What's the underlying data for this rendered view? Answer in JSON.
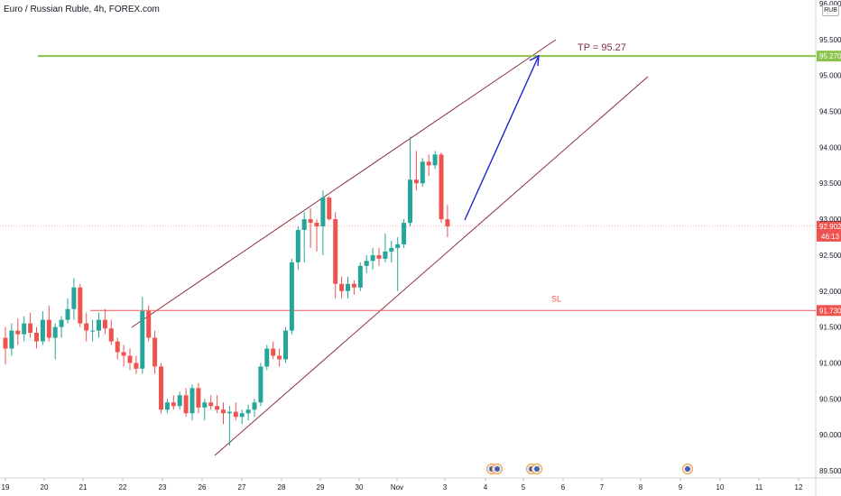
{
  "header": {
    "title": "Euro / Russian Ruble, 4h, FOREX.com",
    "currency": "RUB"
  },
  "colors": {
    "up": "#26a69a",
    "down": "#ef5350",
    "channel": "#8b2c3c",
    "arrow": "#1e22d4",
    "tp_line": "#8bc34a",
    "tp_text": "#7b2c4c",
    "sl": "#ef5350",
    "current": "#ef5350",
    "tp_tag": "#8bc34a",
    "grid": "#e0e3eb",
    "axis_text": "#131722"
  },
  "chart_data": {
    "type": "candlestick",
    "symbol": "EURRUB",
    "interval": "4h",
    "source": "FOREX.com",
    "ylim": [
      89.5,
      96.0
    ],
    "y_ticks": [
      "96.000",
      "95.500",
      "95.000",
      "94.500",
      "94.000",
      "93.500",
      "93.000",
      "92.500",
      "92.000",
      "91.500",
      "91.000",
      "90.500",
      "90.000",
      "89.500"
    ],
    "x_ticks": [
      "19",
      "20",
      "21",
      "22",
      "23",
      "26",
      "27",
      "28",
      "29",
      "30",
      "Nov",
      "3",
      "4",
      "5",
      "6",
      "7",
      "8",
      "9",
      "10",
      "11",
      "12"
    ],
    "candles": [
      {
        "o": 91.35,
        "h": 91.5,
        "l": 90.98,
        "c": 91.2
      },
      {
        "o": 91.2,
        "h": 91.55,
        "l": 91.1,
        "c": 91.45
      },
      {
        "o": 91.45,
        "h": 91.62,
        "l": 91.25,
        "c": 91.4
      },
      {
        "o": 91.4,
        "h": 91.65,
        "l": 91.3,
        "c": 91.55
      },
      {
        "o": 91.55,
        "h": 91.7,
        "l": 91.35,
        "c": 91.42
      },
      {
        "o": 91.42,
        "h": 91.5,
        "l": 91.2,
        "c": 91.3
      },
      {
        "o": 91.3,
        "h": 91.72,
        "l": 91.25,
        "c": 91.6
      },
      {
        "o": 91.6,
        "h": 91.8,
        "l": 91.3,
        "c": 91.35
      },
      {
        "o": 91.35,
        "h": 91.55,
        "l": 91.05,
        "c": 91.5
      },
      {
        "o": 91.5,
        "h": 91.65,
        "l": 91.35,
        "c": 91.6
      },
      {
        "o": 91.6,
        "h": 91.9,
        "l": 91.55,
        "c": 91.75
      },
      {
        "o": 91.75,
        "h": 92.18,
        "l": 91.6,
        "c": 92.05
      },
      {
        "o": 92.05,
        "h": 92.1,
        "l": 91.5,
        "c": 91.55
      },
      {
        "o": 91.55,
        "h": 91.7,
        "l": 91.3,
        "c": 91.45
      },
      {
        "o": 91.45,
        "h": 91.6,
        "l": 91.3,
        "c": 91.45
      },
      {
        "o": 91.45,
        "h": 91.7,
        "l": 91.35,
        "c": 91.6
      },
      {
        "o": 91.6,
        "h": 91.75,
        "l": 91.4,
        "c": 91.48
      },
      {
        "o": 91.48,
        "h": 91.6,
        "l": 91.25,
        "c": 91.3
      },
      {
        "o": 91.3,
        "h": 91.35,
        "l": 91.05,
        "c": 91.15
      },
      {
        "o": 91.15,
        "h": 91.25,
        "l": 90.95,
        "c": 91.1
      },
      {
        "o": 91.1,
        "h": 91.2,
        "l": 90.9,
        "c": 91.0
      },
      {
        "o": 91.0,
        "h": 91.1,
        "l": 90.85,
        "c": 90.92
      },
      {
        "o": 90.92,
        "h": 91.92,
        "l": 90.85,
        "c": 91.72
      },
      {
        "o": 91.72,
        "h": 91.8,
        "l": 91.3,
        "c": 91.35
      },
      {
        "o": 91.35,
        "h": 91.45,
        "l": 90.85,
        "c": 90.95
      },
      {
        "o": 90.95,
        "h": 91.0,
        "l": 90.3,
        "c": 90.35
      },
      {
        "o": 90.35,
        "h": 90.5,
        "l": 90.3,
        "c": 90.45
      },
      {
        "o": 90.45,
        "h": 90.55,
        "l": 90.35,
        "c": 90.4
      },
      {
        "o": 90.4,
        "h": 90.6,
        "l": 90.35,
        "c": 90.55
      },
      {
        "o": 90.55,
        "h": 90.65,
        "l": 90.25,
        "c": 90.3
      },
      {
        "o": 90.3,
        "h": 90.7,
        "l": 90.2,
        "c": 90.65
      },
      {
        "o": 90.65,
        "h": 90.72,
        "l": 90.3,
        "c": 90.38
      },
      {
        "o": 90.38,
        "h": 90.5,
        "l": 90.2,
        "c": 90.45
      },
      {
        "o": 90.45,
        "h": 90.55,
        "l": 90.35,
        "c": 90.4
      },
      {
        "o": 90.4,
        "h": 90.55,
        "l": 90.3,
        "c": 90.35
      },
      {
        "o": 90.35,
        "h": 90.45,
        "l": 90.15,
        "c": 90.3
      },
      {
        "o": 90.3,
        "h": 90.4,
        "l": 89.85,
        "c": 90.32
      },
      {
        "o": 90.32,
        "h": 90.45,
        "l": 90.2,
        "c": 90.25
      },
      {
        "o": 90.25,
        "h": 90.35,
        "l": 90.15,
        "c": 90.3
      },
      {
        "o": 90.3,
        "h": 90.42,
        "l": 90.2,
        "c": 90.35
      },
      {
        "o": 90.35,
        "h": 90.5,
        "l": 90.25,
        "c": 90.45
      },
      {
        "o": 90.45,
        "h": 91.0,
        "l": 90.4,
        "c": 90.95
      },
      {
        "o": 90.95,
        "h": 91.25,
        "l": 90.9,
        "c": 91.2
      },
      {
        "o": 91.2,
        "h": 91.3,
        "l": 91.05,
        "c": 91.1
      },
      {
        "o": 91.1,
        "h": 91.2,
        "l": 90.95,
        "c": 91.05
      },
      {
        "o": 91.05,
        "h": 91.5,
        "l": 91.0,
        "c": 91.45
      },
      {
        "o": 91.45,
        "h": 92.45,
        "l": 91.4,
        "c": 92.4
      },
      {
        "o": 92.4,
        "h": 92.9,
        "l": 92.3,
        "c": 92.85
      },
      {
        "o": 92.85,
        "h": 93.1,
        "l": 92.4,
        "c": 93.0
      },
      {
        "o": 93.0,
        "h": 93.15,
        "l": 92.6,
        "c": 92.95
      },
      {
        "o": 92.95,
        "h": 93.0,
        "l": 92.55,
        "c": 92.9
      },
      {
        "o": 92.9,
        "h": 93.4,
        "l": 92.5,
        "c": 93.3
      },
      {
        "o": 93.3,
        "h": 93.32,
        "l": 92.98,
        "c": 93.0
      },
      {
        "o": 93.0,
        "h": 93.1,
        "l": 91.9,
        "c": 92.1
      },
      {
        "o": 92.1,
        "h": 92.2,
        "l": 91.9,
        "c": 92.0
      },
      {
        "o": 92.0,
        "h": 92.2,
        "l": 91.9,
        "c": 92.1
      },
      {
        "o": 92.1,
        "h": 92.15,
        "l": 91.95,
        "c": 92.05
      },
      {
        "o": 92.05,
        "h": 92.4,
        "l": 92.0,
        "c": 92.35
      },
      {
        "o": 92.35,
        "h": 92.5,
        "l": 92.25,
        "c": 92.42
      },
      {
        "o": 92.42,
        "h": 92.6,
        "l": 92.3,
        "c": 92.5
      },
      {
        "o": 92.5,
        "h": 92.6,
        "l": 92.35,
        "c": 92.45
      },
      {
        "o": 92.45,
        "h": 92.8,
        "l": 92.4,
        "c": 92.55
      },
      {
        "o": 92.55,
        "h": 92.7,
        "l": 92.4,
        "c": 92.6
      },
      {
        "o": 92.6,
        "h": 92.75,
        "l": 92.0,
        "c": 92.65
      },
      {
        "o": 92.65,
        "h": 93.0,
        "l": 92.6,
        "c": 92.95
      },
      {
        "o": 92.95,
        "h": 94.15,
        "l": 92.9,
        "c": 93.55
      },
      {
        "o": 93.55,
        "h": 93.95,
        "l": 93.4,
        "c": 93.5
      },
      {
        "o": 93.5,
        "h": 93.85,
        "l": 93.45,
        "c": 93.8
      },
      {
        "o": 93.8,
        "h": 93.9,
        "l": 93.6,
        "c": 93.75
      },
      {
        "o": 93.75,
        "h": 93.95,
        "l": 93.7,
        "c": 93.9
      },
      {
        "o": 93.9,
        "h": 93.93,
        "l": 92.95,
        "c": 93.0
      },
      {
        "o": 93.0,
        "h": 93.2,
        "l": 92.75,
        "c": 92.9
      }
    ],
    "annotations": {
      "tp_label": "TP = 95.27",
      "sl_label": "SL",
      "tp_price": "95.270",
      "sl_price": "91.730",
      "current_price": "92.902",
      "countdown": "46:13"
    }
  }
}
